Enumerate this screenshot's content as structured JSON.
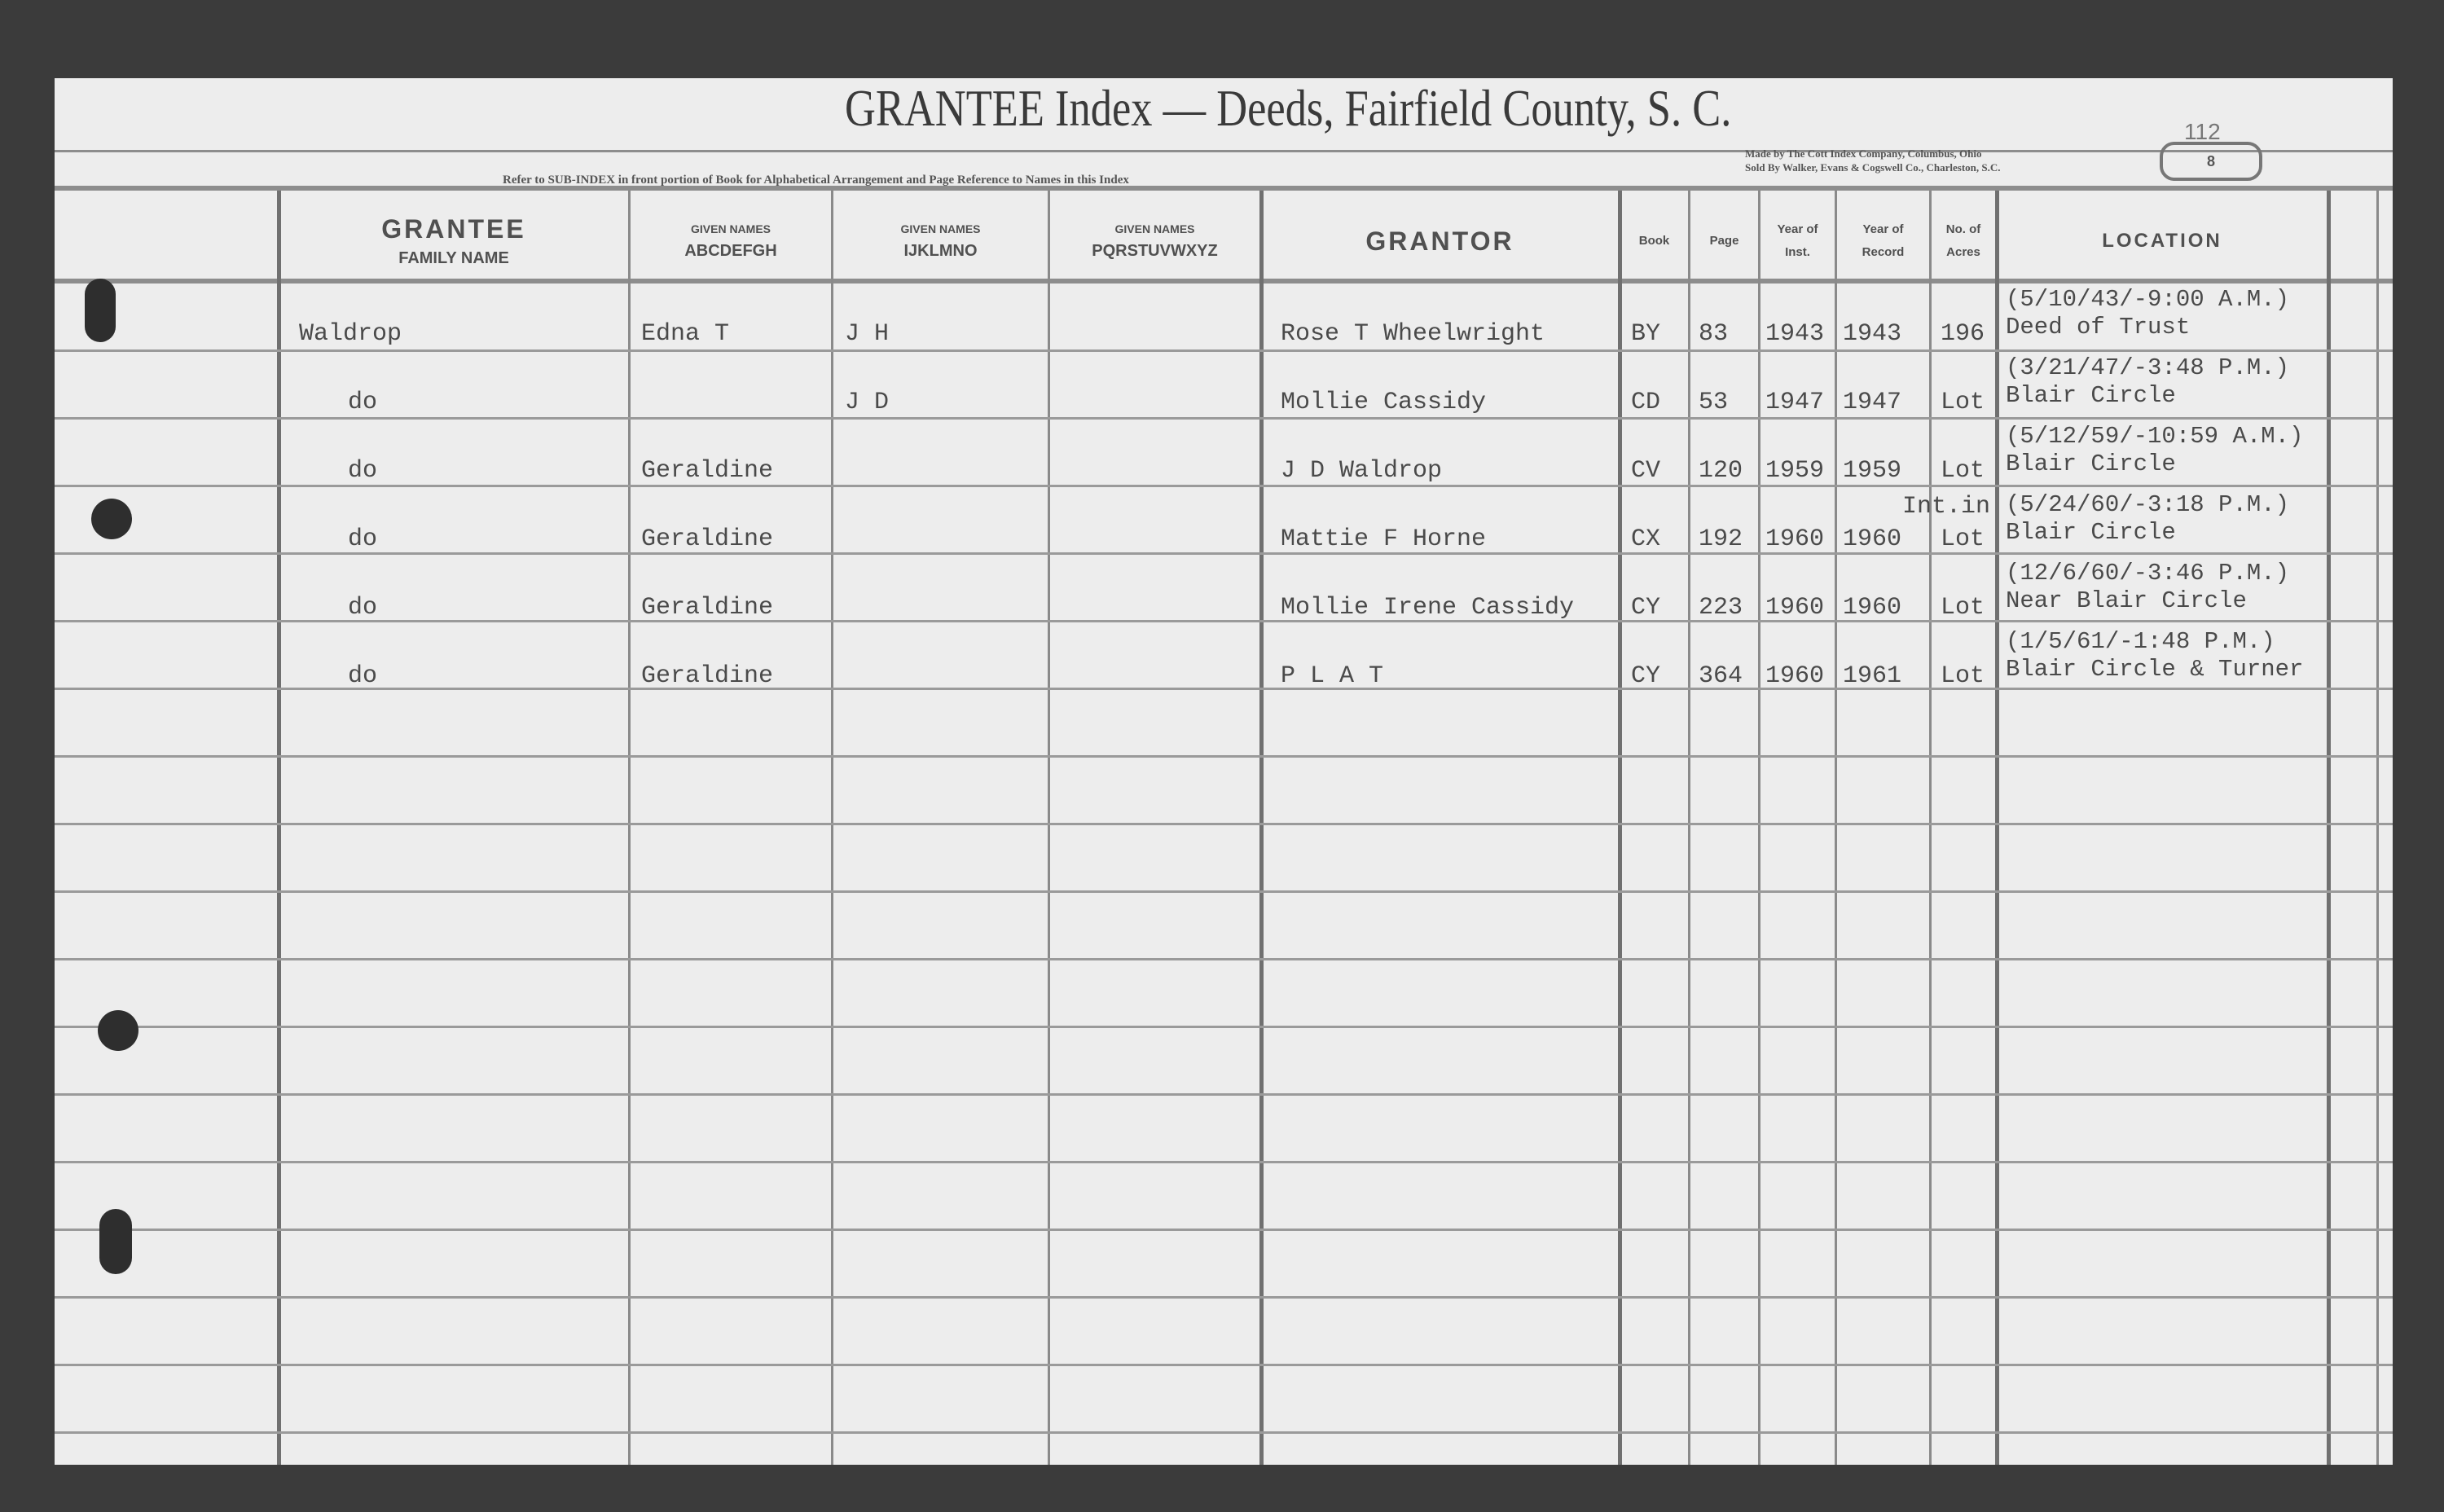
{
  "header": {
    "title": "GRANTEE Index — Deeds, Fairfield County, S. C.",
    "refer_note": "Refer to SUB-INDEX in front portion of Book for Alphabetical Arrangement and Page Reference to Names in this Index",
    "maker_line1": "Made by The Cott Index Company, Columbus, Ohio",
    "maker_line2": "Sold By Walker, Evans & Cogswell Co., Charleston, S.C.",
    "page_number": "112",
    "page_letter": "8"
  },
  "columns": {
    "grantee": "GRANTEE",
    "family_name": "FAMILY NAME",
    "given_names_label": "GIVEN NAMES",
    "given1": "ABCDEFGH",
    "given2": "IJKLMNO",
    "given3": "PQRSTUVWXYZ",
    "grantor": "GRANTOR",
    "book": "Book",
    "page": "Page",
    "year_inst_1": "Year of",
    "year_inst_2": "Inst.",
    "year_rec_1": "Year of",
    "year_rec_2": "Record",
    "acres_1": "No. of",
    "acres_2": "Acres",
    "location": "LOCATION"
  },
  "rows": [
    {
      "family": "Waldrop",
      "given1": "Edna T",
      "given2": "J H",
      "given3": "",
      "grantor": "Rose T Wheelwright",
      "book": "BY",
      "page": "83",
      "year_inst": "1943",
      "year_rec": "1943",
      "acres": "196",
      "acres_note": "",
      "loc1": "(5/10/43/-9:00 A.M.)",
      "loc2": "Deed of Trust"
    },
    {
      "family": "do",
      "given1": "",
      "given2": "J D",
      "given3": "",
      "grantor": "Mollie Cassidy",
      "book": "CD",
      "page": "53",
      "year_inst": "1947",
      "year_rec": "1947",
      "acres": "Lot",
      "acres_note": "",
      "loc1": "(3/21/47/-3:48 P.M.)",
      "loc2": "Blair Circle"
    },
    {
      "family": "do",
      "given1": "Geraldine",
      "given2": "",
      "given3": "",
      "grantor": "J D Waldrop",
      "book": "CV",
      "page": "120",
      "year_inst": "1959",
      "year_rec": "1959",
      "acres": "Lot",
      "acres_note": "",
      "loc1": "(5/12/59/-10:59 A.M.)",
      "loc2": "Blair Circle"
    },
    {
      "family": "do",
      "given1": "Geraldine",
      "given2": "",
      "given3": "",
      "grantor": "Mattie F Horne",
      "book": "CX",
      "page": "192",
      "year_inst": "1960",
      "year_rec": "1960",
      "acres": "Lot",
      "acres_note": "Int.in",
      "loc1": "(5/24/60/-3:18 P.M.)",
      "loc2": "Blair Circle"
    },
    {
      "family": "do",
      "given1": "Geraldine",
      "given2": "",
      "given3": "",
      "grantor": "Mollie Irene Cassidy",
      "book": "CY",
      "page": "223",
      "year_inst": "1960",
      "year_rec": "1960",
      "acres": "Lot",
      "acres_note": "",
      "loc1": "(12/6/60/-3:46 P.M.)",
      "loc2": "Near Blair Circle"
    },
    {
      "family": "do",
      "given1": "Geraldine",
      "given2": "",
      "given3": "",
      "grantor": "P L A T",
      "book": "CY",
      "page": "364",
      "year_inst": "1960",
      "year_rec": "1961",
      "acres": "Lot",
      "acres_note": "",
      "loc1": "(1/5/61/-1:48 P.M.)",
      "loc2": "Blair Circle & Turner"
    }
  ]
}
